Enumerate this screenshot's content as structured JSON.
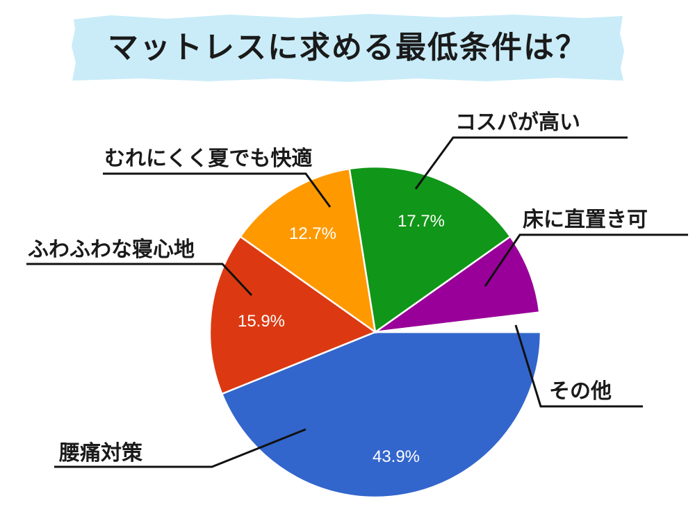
{
  "title": "マットレスに求める最低条件は？",
  "colors": {
    "banner": "#c9ecf8",
    "title_text": "#1a1a1a",
    "line": "#111111"
  },
  "chart_data": {
    "type": "pie",
    "title": "マットレスに求める最低条件は？",
    "slices": [
      {
        "label": "腰痛対策",
        "value": 43.9,
        "pct_label": "43.9%",
        "color": "#3366cc"
      },
      {
        "label": "ふわふわな寝心地",
        "value": 15.9,
        "pct_label": "15.9%",
        "color": "#dc3912"
      },
      {
        "label": "むれにくく夏でも快適",
        "value": 12.7,
        "pct_label": "12.7%",
        "color": "#ff9900"
      },
      {
        "label": "コスパが高い",
        "value": 17.7,
        "pct_label": "17.7%",
        "color": "#109618"
      },
      {
        "label": "床に直置き可",
        "value": 7.9,
        "pct_label": "",
        "color": "#990099"
      },
      {
        "label": "その他",
        "value": 1.9,
        "pct_label": "",
        "color": "#ffffff"
      }
    ]
  }
}
